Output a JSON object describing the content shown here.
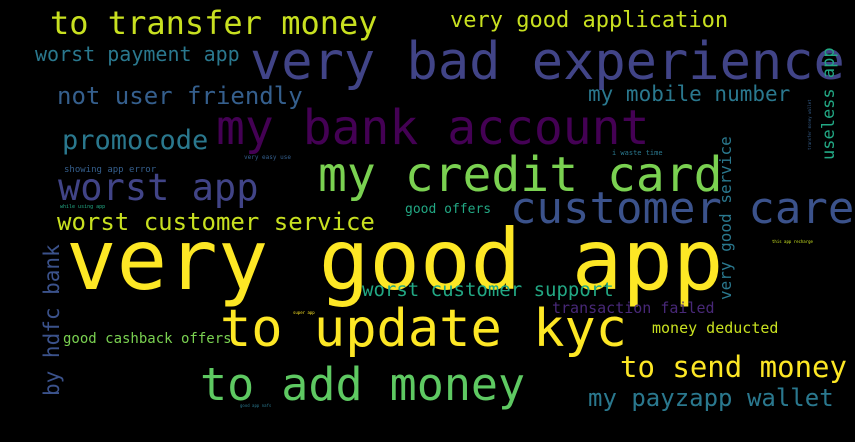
{
  "palette": {
    "yellow": "#fde725",
    "lime": "#c8e020",
    "green": "#7ad151",
    "mid_green": "#5ec962",
    "teal_green": "#22a884",
    "teal": "#2a788e",
    "steel": "#355f8d",
    "indigo": "#414487",
    "slate": "#3b528b",
    "purple": "#440154",
    "violet": "#482878"
  },
  "phrases": {
    "p01": "very good app",
    "p02": "very bad experience",
    "p03": "my bank account",
    "p04": "my credit card",
    "p05": "to update kyc",
    "p06": "customer care",
    "p07": "to add money",
    "p08": "to transfer money",
    "p09": "worst app",
    "p10": "very good application",
    "p11": "worst payment app",
    "p12": "not user friendly",
    "p13": "my mobile number",
    "p14": "promocode",
    "p15": "worst customer service",
    "p16": "good offers",
    "p17": "worst customer support",
    "p18": "transaction failed",
    "p19": "money deducted",
    "p20": "good cashback offers",
    "p21": "to send money",
    "p22": "my payzapp wallet",
    "p23": "by hdfc bank",
    "p24": "useless app",
    "p25": "very good service",
    "p26": "showing app error",
    "p27": "very easy use",
    "p28": "i waste time",
    "p29": "while using app",
    "p30": "this app recharge",
    "p31": "super app",
    "p32": "good app nafs",
    "p33": "transfer money wallet"
  }
}
